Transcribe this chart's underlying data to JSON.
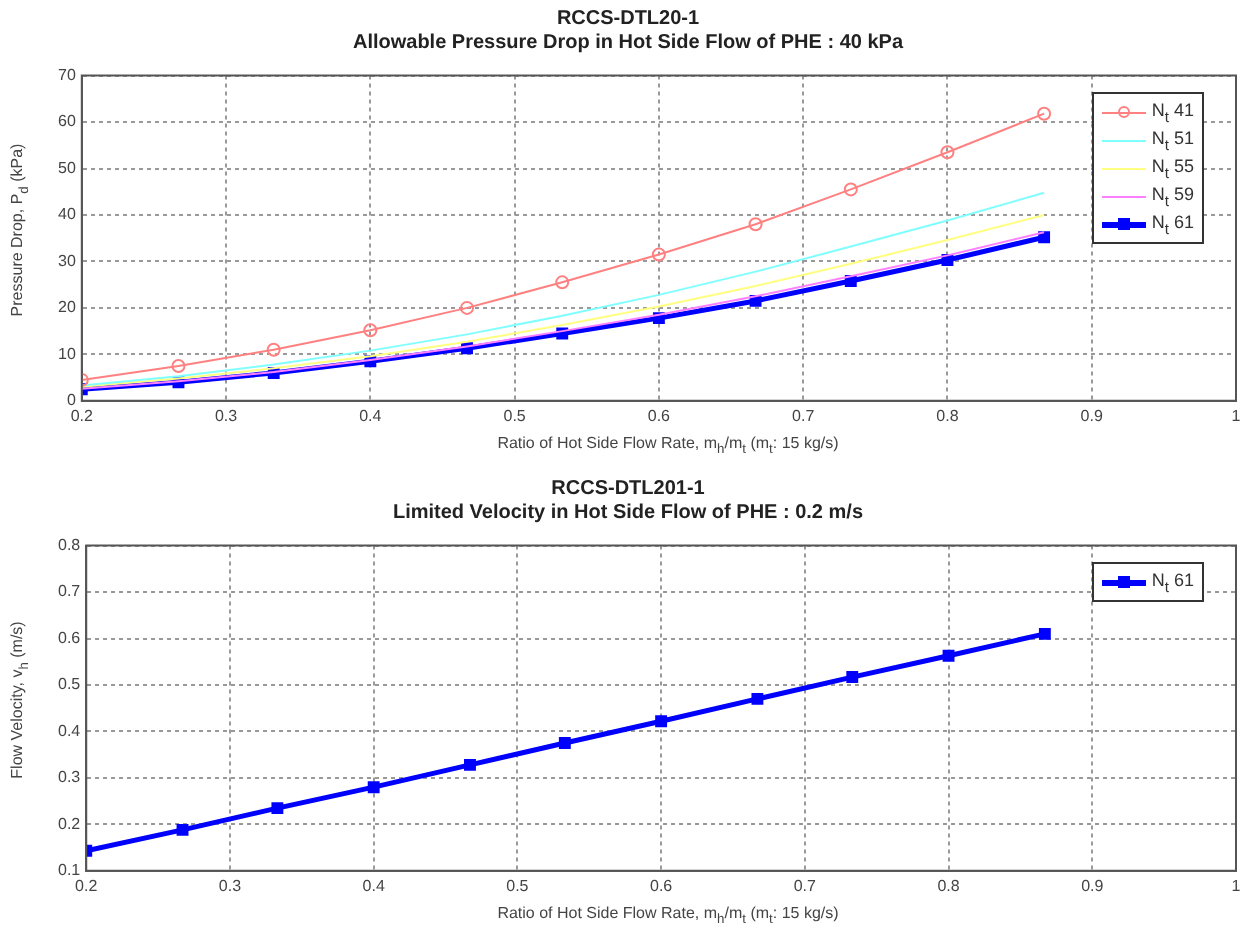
{
  "chart_data": [
    {
      "type": "line",
      "title": "RCCS-DTL20-1",
      "subtitle": "Allowable Pressure Drop in Hot Side Flow of PHE : 40 kPa",
      "xlabel": "Ratio of Hot Side Flow Rate, m$_{h}$/m$_{t}$ (m$_{t}$: 15 kg/s)",
      "ylabel": "Pressure Drop, P$_{d}$ (kPa)",
      "x": [
        0.2,
        0.267,
        0.333,
        0.4,
        0.467,
        0.533,
        0.6,
        0.667,
        0.733,
        0.8,
        0.867
      ],
      "series": [
        {
          "name": "N$_{t}$ 41",
          "color": "#ff8080",
          "marker": "circle",
          "values": [
            4.5,
            7.5,
            11,
            15.2,
            20,
            25.5,
            31.5,
            38,
            45.5,
            53.5,
            61.8
          ]
        },
        {
          "name": "N$_{t}$ 51",
          "color": "#80ffff",
          "marker": "none",
          "values": [
            3.3,
            5.3,
            7.8,
            10.8,
            14.3,
            18.3,
            22.8,
            27.8,
            33.2,
            38.8,
            44.8
          ]
        },
        {
          "name": "N$_{t}$ 55",
          "color": "#ffff80",
          "marker": "none",
          "values": [
            3,
            4.8,
            7,
            9.6,
            12.7,
            16.3,
            20.3,
            24.7,
            29.5,
            34.6,
            40
          ]
        },
        {
          "name": "N$_{t}$ 59",
          "color": "#ff80ff",
          "marker": "none",
          "values": [
            2.6,
            4.2,
            6.2,
            8.8,
            11.7,
            15,
            18.5,
            22.5,
            26.8,
            31.3,
            36.3
          ]
        },
        {
          "name": "N$_{t}$ 61",
          "color": "#0000ff",
          "marker": "square",
          "values": [
            2.5,
            4,
            6,
            8.5,
            11.3,
            14.5,
            17.8,
            21.5,
            25.8,
            30.3,
            35.2
          ]
        }
      ],
      "xlim": [
        0.2,
        1
      ],
      "xticks": [
        0.2,
        0.3,
        0.4,
        0.5,
        0.6,
        0.7,
        0.8,
        0.9,
        1
      ],
      "ylim": [
        0,
        70
      ],
      "yticks": [
        0,
        10,
        20,
        30,
        40,
        50,
        60,
        70
      ],
      "grid": true,
      "legend": "top right"
    },
    {
      "type": "line",
      "title": "RCCS-DTL201-1",
      "subtitle": "Limited Velocity in Hot Side Flow of PHE : 0.2 m/s",
      "xlabel": "Ratio of Hot Side Flow Rate, m$_{h}$/m$_{t}$ (m$_{t}$: 15 kg/s)",
      "ylabel": "Flow Velocity, v$_{h}$ (m/s)",
      "x": [
        0.2,
        0.267,
        0.333,
        0.4,
        0.467,
        0.533,
        0.6,
        0.667,
        0.733,
        0.8,
        0.867
      ],
      "series": [
        {
          "name": "N$_{t}$ 61",
          "color": "#0000ff",
          "marker": "square",
          "values": [
            0.143,
            0.188,
            0.235,
            0.28,
            0.328,
            0.375,
            0.422,
            0.47,
            0.517,
            0.563,
            0.61
          ]
        }
      ],
      "xlim": [
        0.2,
        1
      ],
      "xticks": [
        0.2,
        0.3,
        0.4,
        0.5,
        0.6,
        0.7,
        0.8,
        0.9,
        1
      ],
      "ylim": [
        0.1,
        0.8
      ],
      "yticks": [
        0.1,
        0.2,
        0.3,
        0.4,
        0.5,
        0.6,
        0.7,
        0.8
      ],
      "grid": true,
      "legend": "top right"
    }
  ]
}
